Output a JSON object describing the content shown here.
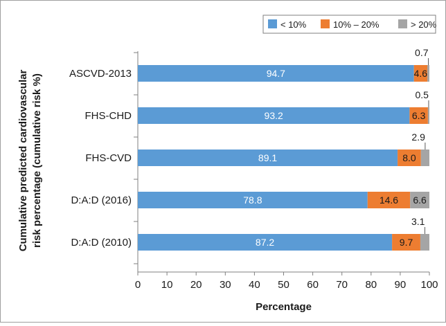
{
  "chart_data": {
    "type": "bar",
    "orientation": "horizontal",
    "stacked": true,
    "title": "",
    "xlabel": "Percentage",
    "ylabel": "Cumulative predicted cardiovascular risk percentage (cumulative risk %)",
    "xlim": [
      0,
      100
    ],
    "xticks": [
      0,
      10,
      20,
      30,
      40,
      50,
      60,
      70,
      80,
      90,
      100
    ],
    "grid": false,
    "legend_position": "top-right",
    "categories": [
      "ASCVD-2013",
      "FHS-CHD",
      "FHS-CVD",
      "D:A:D (2016)",
      "D:A:D (2010)"
    ],
    "series": [
      {
        "name": "< 10%",
        "color": "#5B9BD5",
        "values": [
          94.7,
          93.2,
          89.1,
          78.8,
          87.2
        ],
        "labels": [
          "94.7",
          "93.2",
          "89.1",
          "78.8",
          "87.2"
        ]
      },
      {
        "name": "10% – 20%",
        "color": "#ED7D31",
        "values": [
          4.6,
          6.3,
          8.0,
          14.6,
          9.7
        ],
        "labels": [
          "4.6",
          "6.3",
          "8.0",
          "14.6",
          "9.7"
        ]
      },
      {
        "name": "> 20%",
        "color": "#A5A5A5",
        "values": [
          0.7,
          0.5,
          2.9,
          6.6,
          3.1
        ],
        "labels": [
          "0.7",
          "0.5",
          "2.9",
          "6.6",
          "3.1"
        ]
      }
    ]
  }
}
